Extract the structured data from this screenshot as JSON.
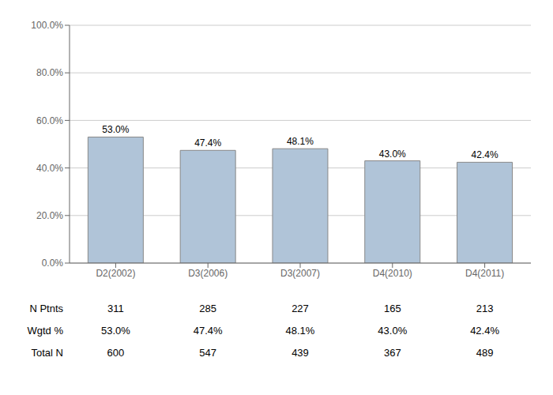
{
  "chart_data": {
    "type": "bar",
    "categories": [
      "D2(2002)",
      "D3(2006)",
      "D3(2007)",
      "D4(2010)",
      "D4(2011)"
    ],
    "values": [
      53.0,
      47.4,
      48.1,
      43.0,
      42.4
    ],
    "value_labels": [
      "53.0%",
      "47.4%",
      "48.1%",
      "43.0%",
      "42.4%"
    ],
    "data_labels": true,
    "color": "#b0c4d8",
    "ylim": [
      0,
      100
    ],
    "yticks": [
      {
        "value": 0,
        "label": "0.0%"
      },
      {
        "value": 20,
        "label": "20.0%"
      },
      {
        "value": 40,
        "label": "40.0%"
      },
      {
        "value": 60,
        "label": "60.0%"
      },
      {
        "value": 80,
        "label": "80.0%"
      },
      {
        "value": 100,
        "label": "100.0%"
      }
    ],
    "grid": true,
    "table": [
      {
        "label": "N Ptnts",
        "values": [
          311,
          285,
          227,
          165,
          213
        ]
      },
      {
        "label": "Wgtd %",
        "values": [
          53.0,
          47.4,
          48.1,
          43.0,
          42.4
        ],
        "value_labels": [
          "53.0%",
          "47.4%",
          "48.1%",
          "43.0%",
          "42.4%"
        ]
      },
      {
        "label": "Total N",
        "values": [
          600,
          547,
          439,
          367,
          489
        ]
      }
    ]
  }
}
